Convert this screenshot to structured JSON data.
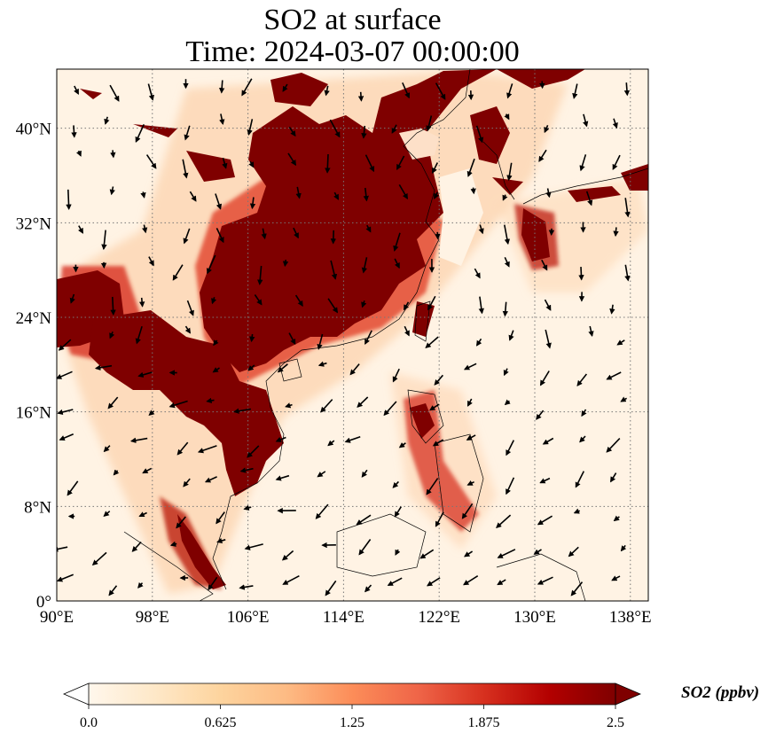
{
  "title": {
    "line1": "SO2 at surface",
    "line2": "Time: 2024-03-07 00:00:00"
  },
  "map": {
    "projection": "PlateCarree",
    "lon_range": [
      90,
      139.5
    ],
    "lat_range": [
      0,
      45
    ],
    "x_ticks": [
      90,
      98,
      106,
      114,
      122,
      130,
      138
    ],
    "x_tick_labels": [
      "90°E",
      "98°E",
      "106°E",
      "114°E",
      "122°E",
      "130°E",
      "138°E"
    ],
    "y_ticks": [
      0,
      8,
      16,
      24,
      32,
      40
    ],
    "y_tick_labels": [
      "0°",
      "8°N",
      "16°N",
      "24°N",
      "32°N",
      "40°N"
    ],
    "gridlines": "dotted",
    "field": "SO2 concentration (filled raster, OrRd colormap)",
    "overlay": "surface wind vectors (quiver arrows)"
  },
  "colorbar": {
    "label": "SO2 (ppbv)",
    "min": 0.0,
    "max": 2.5,
    "extend": "both",
    "ticks": [
      "0.0",
      "0.625",
      "1.25",
      "1.875",
      "2.5"
    ],
    "colors": [
      "#fff7ec",
      "#fee8c8",
      "#fdd49e",
      "#fdbb84",
      "#fc8d59",
      "#ef6548",
      "#d7301f",
      "#b30000",
      "#7f0000"
    ]
  }
}
